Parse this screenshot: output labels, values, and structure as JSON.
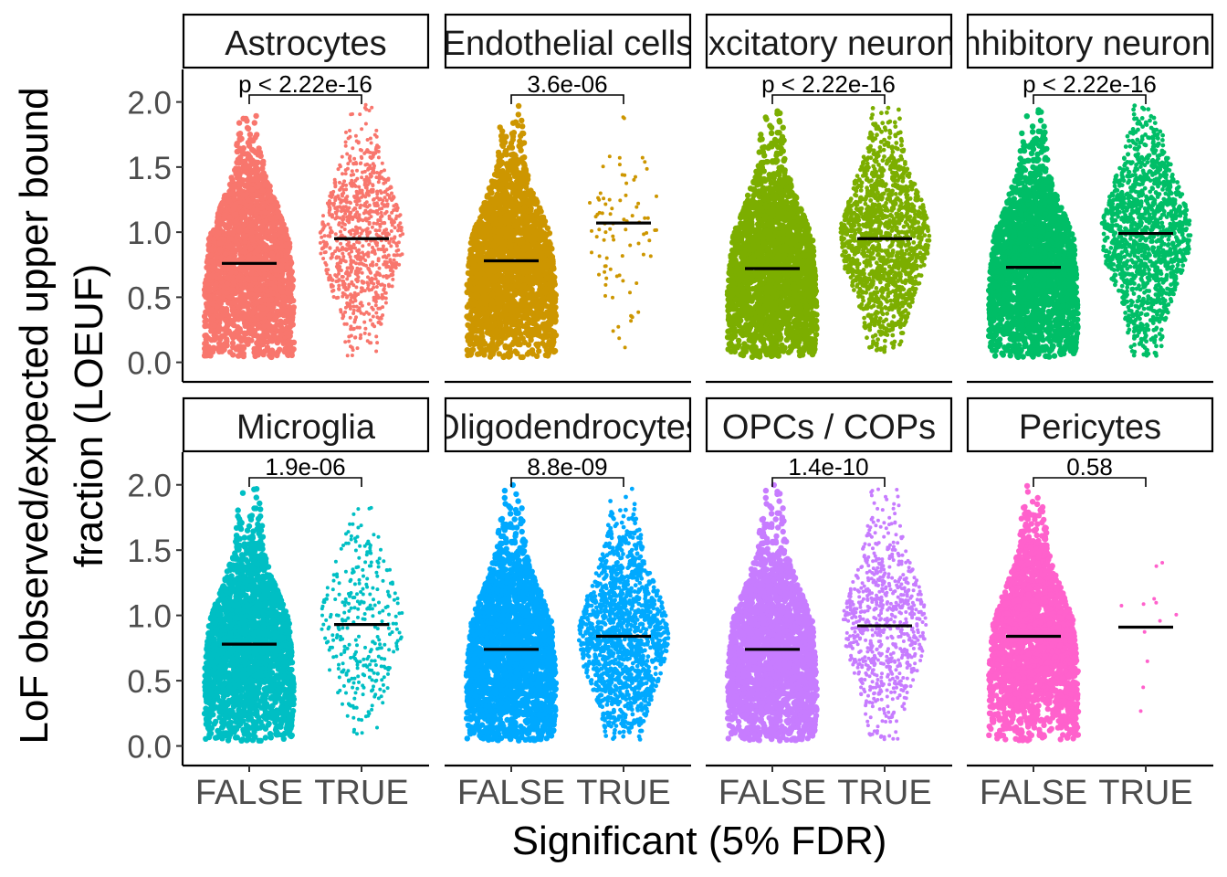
{
  "figure": {
    "ylabel_line1": "LoF observed/expected upper bound",
    "ylabel_line2": "fraction (LOEUF)",
    "xlabel": "Significant (5% FDR)"
  },
  "chart_data": {
    "type": "scatter",
    "subtype": "faceted beeswarm with median bars",
    "facet_rows": 2,
    "facet_cols": 4,
    "categories": [
      "FALSE",
      "TRUE"
    ],
    "ylim": [
      -0.15,
      2.25
    ],
    "y_ticks": [
      "0.0",
      "0.5",
      "1.0",
      "1.5",
      "2.0"
    ],
    "y_tick_values": [
      0.0,
      0.5,
      1.0,
      1.5,
      2.0
    ],
    "grid": false,
    "legend": "none",
    "panels": [
      {
        "strip": "Astrocytes",
        "color": "#F8766D",
        "pvalue": "p < 2.22e-16",
        "true_n": 900,
        "false_median": 0.76,
        "true_median": 0.95
      },
      {
        "strip": "Endothelial cells",
        "color": "#CD9600",
        "pvalue": "3.6e-06",
        "true_n": 85,
        "false_median": 0.78,
        "true_median": 1.07
      },
      {
        "strip": "Excitatory neurons",
        "color": "#7CAE00",
        "pvalue": "p < 2.22e-16",
        "true_n": 2400,
        "false_median": 0.72,
        "true_median": 0.95
      },
      {
        "strip": "Inhibitory neurons",
        "color": "#00BE67",
        "pvalue": "p < 2.22e-16",
        "true_n": 1300,
        "false_median": 0.73,
        "true_median": 0.99
      },
      {
        "strip": "Microglia",
        "color": "#00BFC4",
        "pvalue": "1.9e-06",
        "true_n": 330,
        "false_median": 0.78,
        "true_median": 0.93
      },
      {
        "strip": "Oligodendrocytes",
        "color": "#00A9FF",
        "pvalue": "8.8e-09",
        "true_n": 1500,
        "false_median": 0.74,
        "true_median": 0.84
      },
      {
        "strip": "OPCs / COPs",
        "color": "#C77CFF",
        "pvalue": "1.4e-10",
        "true_n": 750,
        "false_median": 0.74,
        "true_median": 0.92
      },
      {
        "strip": "Pericytes",
        "color": "#FF61CC",
        "pvalue": "0.58",
        "true_n": 12,
        "false_median": 0.84,
        "true_median": 0.91
      }
    ]
  }
}
